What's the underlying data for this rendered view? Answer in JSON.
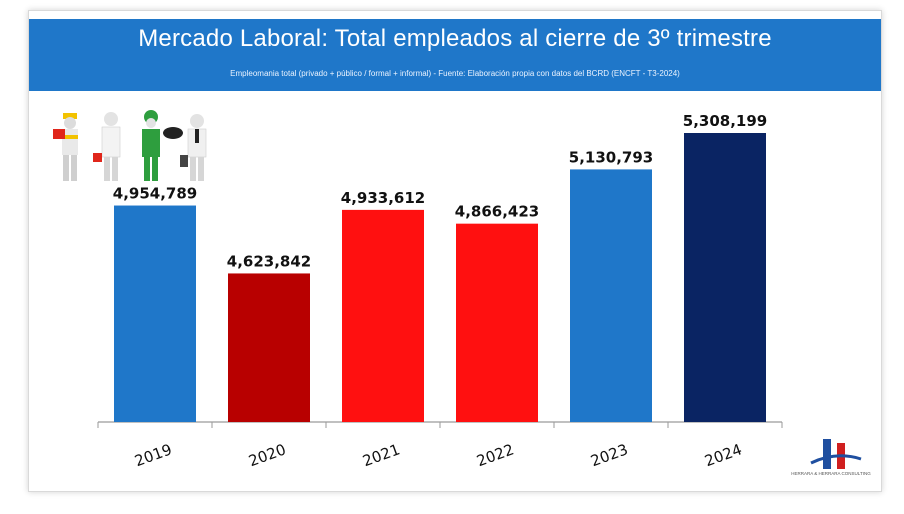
{
  "header": {
    "title": "Mercado Laboral: Total empleados al cierre de 3º trimestre",
    "subtitle": "Empleomania total (privado + público / formal + informal) - Fuente: Elaboración propia con datos del BCRD (ENCFT - T3-2024)"
  },
  "colors": {
    "header_bg": "#1f77c9",
    "bar_2019": "#1f77c9",
    "bar_2020": "#b80000",
    "bar_2021": "#ff1010",
    "bar_2022": "#ff1010",
    "bar_2023": "#1f77c9",
    "bar_2024": "#0a2463"
  },
  "icons": [
    "construction-worker-icon",
    "doctor-icon",
    "gardener-icon",
    "businessman-icon",
    "company-logo-icon"
  ],
  "chart_data": {
    "type": "bar",
    "title": "Mercado Laboral: Total empleados al cierre de 3º trimestre",
    "categories": [
      "2019",
      "2020",
      "2021",
      "2022",
      "2023",
      "2024"
    ],
    "values": [
      4954789,
      4623842,
      4933612,
      4866423,
      5130793,
      5308199
    ],
    "value_labels": [
      "4,954,789",
      "4,623,842",
      "4,933,612",
      "4,866,423",
      "5,130,793",
      "5,308,199"
    ],
    "xlabel": "",
    "ylabel": "",
    "ylim": [
      3900000,
      5350000
    ],
    "grid": false,
    "legend": "none"
  },
  "logo": {
    "caption": "HERRARA & HERRARA CONSULTING"
  }
}
